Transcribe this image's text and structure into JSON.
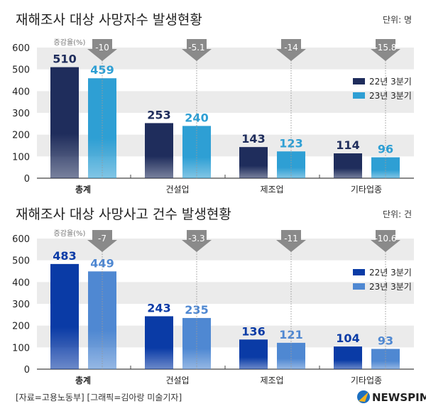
{
  "footer": {
    "source": "[자료=고용노동부] [그래픽=김아랑 미술기자]",
    "logo": "NEWSPIM"
  },
  "chart_data": [
    {
      "type": "bar",
      "title": "재해조사 대상 사망자수 발생현황",
      "unit": "단위: 명",
      "change_label": "증감율(%)",
      "categories": [
        "총계",
        "건설업",
        "제조업",
        "기타업종"
      ],
      "series": [
        {
          "name": "22년 3분기",
          "values": [
            510,
            253,
            143,
            114
          ],
          "color": "#1f2d5c"
        },
        {
          "name": "23년 3분기",
          "values": [
            459,
            240,
            123,
            96
          ],
          "color": "#2e9fd4"
        }
      ],
      "change": [
        "-10",
        "-5.1",
        "-14",
        "-15.8"
      ],
      "yticks": [
        0,
        100,
        200,
        300,
        400,
        500,
        600
      ],
      "ylim": [
        0,
        600
      ],
      "legend": "right",
      "grid": "alternating bands"
    },
    {
      "type": "bar",
      "title": "재해조사 대상 사망사고 건수 발생현황",
      "unit": "단위: 건",
      "change_label": "증감율(%)",
      "categories": [
        "총계",
        "건설업",
        "제조업",
        "기타업종"
      ],
      "series": [
        {
          "name": "22년 3분기",
          "values": [
            483,
            243,
            136,
            104
          ],
          "color": "#0a3ba6"
        },
        {
          "name": "23년 3분기",
          "values": [
            449,
            235,
            121,
            93
          ],
          "color": "#4f88d2"
        }
      ],
      "change": [
        "-7",
        "-3.3",
        "-11",
        "-10.6"
      ],
      "yticks": [
        0,
        100,
        200,
        300,
        400,
        500,
        600
      ],
      "ylim": [
        0,
        600
      ],
      "legend": "right",
      "grid": "alternating bands"
    }
  ]
}
